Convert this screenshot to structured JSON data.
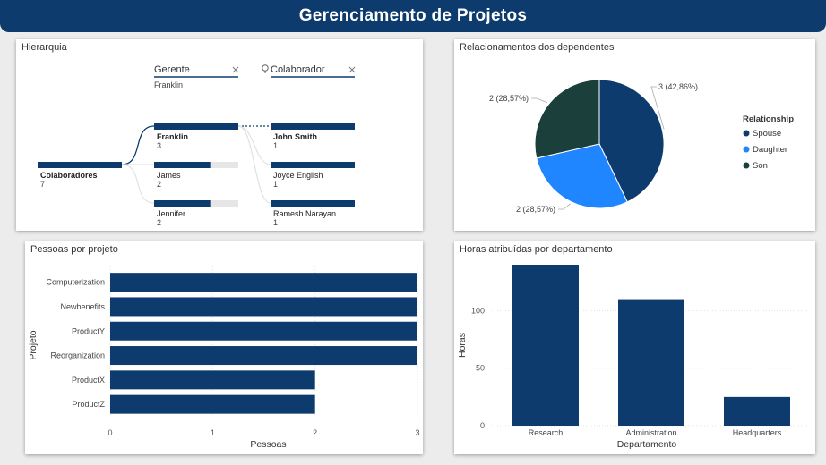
{
  "header": {
    "title": "Gerenciamento de Projetos"
  },
  "colors": {
    "primary": "#0d3b6e",
    "light_blue": "#1f86ff",
    "dark_green": "#1b3f3b",
    "track": "#e6e6e6"
  },
  "hierarchy": {
    "title": "Hierarquia",
    "filters": [
      {
        "label": "Gerente",
        "value": "Franklin",
        "icon": "close-icon"
      },
      {
        "label": "Colaborador",
        "value": "",
        "icon": "lightbulb-icon"
      }
    ],
    "root": {
      "label": "Colaboradores",
      "value": "7"
    },
    "level1": [
      {
        "label": "Franklin",
        "value": "3",
        "fraction": 1.0,
        "selected": true
      },
      {
        "label": "James",
        "value": "2",
        "fraction": 0.667,
        "selected": false
      },
      {
        "label": "Jennifer",
        "value": "2",
        "fraction": 0.667,
        "selected": false
      }
    ],
    "level2": [
      {
        "label": "John Smith",
        "value": "1",
        "fraction": 1.0,
        "bold": true
      },
      {
        "label": "Joyce English",
        "value": "1",
        "fraction": 1.0,
        "bold": false
      },
      {
        "label": "Ramesh Narayan",
        "value": "1",
        "fraction": 1.0,
        "bold": false
      }
    ]
  },
  "chart_data": [
    {
      "type": "pie",
      "title": "Relacionamentos dos dependentes",
      "legend_title": "Relationship",
      "legend_position": "right",
      "slices": [
        {
          "name": "Spouse",
          "value": 3,
          "label": "3 (42,86%)",
          "color": "#0d3b6e"
        },
        {
          "name": "Daughter",
          "value": 2,
          "label": "2 (28,57%)",
          "color": "#1f86ff"
        },
        {
          "name": "Son",
          "value": 2,
          "label": "2 (28,57%)",
          "color": "#1b3f3b"
        }
      ]
    },
    {
      "type": "bar",
      "orientation": "horizontal",
      "title": "Pessoas por projeto",
      "xlabel": "Pessoas",
      "ylabel": "Projeto",
      "categories": [
        "Computerization",
        "Newbenefits",
        "ProductY",
        "Reorganization",
        "ProductX",
        "ProductZ"
      ],
      "values": [
        3,
        3,
        3,
        3,
        2,
        2
      ],
      "xlim": [
        0,
        3
      ],
      "xticks": [
        0,
        1,
        2,
        3
      ],
      "grid": true
    },
    {
      "type": "bar",
      "orientation": "vertical",
      "title": "Horas atribuídas por departamento",
      "xlabel": "Departamento",
      "ylabel": "Horas",
      "categories": [
        "Research",
        "Administration",
        "Headquarters"
      ],
      "values": [
        140,
        110,
        25
      ],
      "ylim": [
        0,
        140
      ],
      "yticks": [
        0,
        50,
        100
      ],
      "grid": true
    }
  ]
}
